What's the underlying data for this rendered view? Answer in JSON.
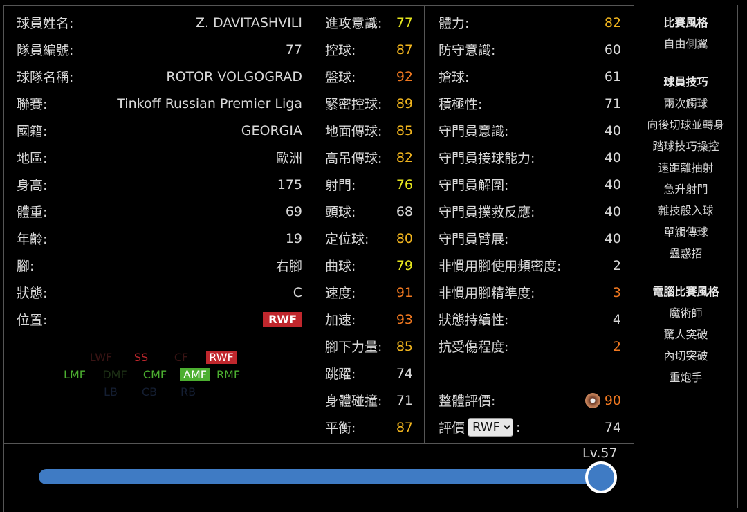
{
  "profile": [
    {
      "label": "球員姓名:",
      "value": "Z. DAVITASHVILI"
    },
    {
      "label": "隊員編號:",
      "value": "77"
    },
    {
      "label": "球隊名稱:",
      "value": "ROTOR VOLGOGRAD"
    },
    {
      "label": "聯賽:",
      "value": "Tinkoff Russian Premier Liga"
    },
    {
      "label": "國籍:",
      "value": "GEORGIA"
    },
    {
      "label": "地區:",
      "value": "歐洲"
    },
    {
      "label": "身高:",
      "value": "175"
    },
    {
      "label": "體重:",
      "value": "69"
    },
    {
      "label": "年齡:",
      "value": "19"
    },
    {
      "label": "腳:",
      "value": "右腳"
    },
    {
      "label": "狀態:",
      "value": "C"
    },
    {
      "label": "位置:",
      "value": "RWF"
    }
  ],
  "positions": [
    {
      "label": "LWF",
      "color": "#3a1414",
      "bg": ""
    },
    {
      "label": "SS",
      "color": "#c0272d",
      "bg": ""
    },
    {
      "label": "CF",
      "color": "#3a1414",
      "bg": ""
    },
    {
      "label": "RWF",
      "color": "#fff",
      "bg": "#c0272d"
    },
    {
      "label": "LMF",
      "color": "#4caf30",
      "bg": ""
    },
    {
      "label": "DMF",
      "color": "#1e3216",
      "bg": ""
    },
    {
      "label": "CMF",
      "color": "#4caf30",
      "bg": ""
    },
    {
      "label": "AMF",
      "color": "#fff",
      "bg": "#4caf30"
    },
    {
      "label": "RMF",
      "color": "#4caf30",
      "bg": ""
    },
    {
      "label": "LB",
      "color": "#141e32",
      "bg": ""
    },
    {
      "label": "CB",
      "color": "#141e32",
      "bg": ""
    },
    {
      "label": "RB",
      "color": "#141e32",
      "bg": ""
    }
  ],
  "attack": [
    {
      "label": "進攻意識:",
      "value": "77",
      "color": "#e6e61e"
    },
    {
      "label": "控球:",
      "value": "87",
      "color": "#f0b41e"
    },
    {
      "label": "盤球:",
      "value": "92",
      "color": "#f07820"
    },
    {
      "label": "緊密控球:",
      "value": "89",
      "color": "#f0b41e"
    },
    {
      "label": "地面傳球:",
      "value": "85",
      "color": "#f0b41e"
    },
    {
      "label": "高吊傳球:",
      "value": "82",
      "color": "#f0b41e"
    },
    {
      "label": "射門:",
      "value": "76",
      "color": "#e6e61e"
    },
    {
      "label": "頭球:",
      "value": "68",
      "color": "#d8d8d8"
    },
    {
      "label": "定位球:",
      "value": "80",
      "color": "#f0b41e"
    },
    {
      "label": "曲球:",
      "value": "79",
      "color": "#e6e61e"
    },
    {
      "label": "速度:",
      "value": "91",
      "color": "#f07820"
    },
    {
      "label": "加速:",
      "value": "93",
      "color": "#f07820"
    },
    {
      "label": "腳下力量:",
      "value": "85",
      "color": "#f0b41e"
    },
    {
      "label": "跳躍:",
      "value": "74",
      "color": "#d8d8d8"
    },
    {
      "label": "身體碰撞:",
      "value": "71",
      "color": "#d8d8d8"
    },
    {
      "label": "平衡:",
      "value": "87",
      "color": "#f0b41e"
    }
  ],
  "other": [
    {
      "label": "體力:",
      "value": "82",
      "color": "#f0b41e"
    },
    {
      "label": "防守意識:",
      "value": "60",
      "color": "#d8d8d8"
    },
    {
      "label": "搶球:",
      "value": "61",
      "color": "#d8d8d8"
    },
    {
      "label": "積極性:",
      "value": "71",
      "color": "#d8d8d8"
    },
    {
      "label": "守門員意識:",
      "value": "40",
      "color": "#d8d8d8"
    },
    {
      "label": "守門員接球能力:",
      "value": "40",
      "color": "#d8d8d8"
    },
    {
      "label": "守門員解圍:",
      "value": "40",
      "color": "#d8d8d8"
    },
    {
      "label": "守門員撲救反應:",
      "value": "40",
      "color": "#d8d8d8"
    },
    {
      "label": "守門員臂展:",
      "value": "40",
      "color": "#d8d8d8"
    },
    {
      "label": "非慣用腳使用頻密度:",
      "value": "2",
      "color": "#d8d8d8"
    },
    {
      "label": "非慣用腳精準度:",
      "value": "3",
      "color": "#f07820"
    },
    {
      "label": "狀態持續性:",
      "value": "4",
      "color": "#d8d8d8"
    },
    {
      "label": "抗受傷程度:",
      "value": "2",
      "color": "#f07820"
    }
  ],
  "overall": {
    "label": "整體評價:",
    "value": "90",
    "color": "#f07820",
    "icon": "bronze-medal-icon"
  },
  "rating": {
    "label": "評價",
    "position": "RWF",
    "suffix": ":",
    "value": "74"
  },
  "level": {
    "label": "Lv.57",
    "fraction": 1.0
  },
  "sidebar": {
    "style_title": "比賽風格",
    "style": [
      "自由側翼"
    ],
    "skills_title": "球員技巧",
    "skills": [
      "兩次觸球",
      "向後切球並轉身",
      "踏球技巧操控",
      "遠距離抽射",
      "急升射門",
      "雜技般入球",
      "單觸傳球",
      "蠱惑招"
    ],
    "ai_title": "電腦比賽風格",
    "ai": [
      "魔術師",
      "驚人突破",
      "內切突破",
      "重炮手"
    ]
  }
}
